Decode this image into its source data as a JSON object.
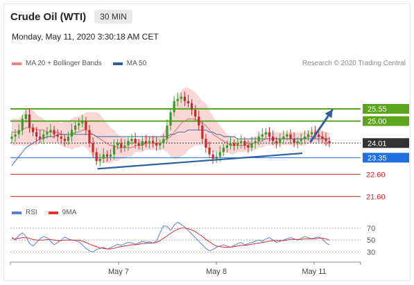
{
  "header": {
    "instrument": "Crude Oil (WTI)",
    "timeframe": "30 MIN",
    "datetime": "Monday, May 11, 2020 3:30:18 AM CET",
    "credit": "Research © 2020 Trading Central"
  },
  "legend_main": [
    {
      "label": "MA 20 + Bollinger Bands",
      "color": "#ef8080"
    },
    {
      "label": "MA 50",
      "color": "#2f5f9e"
    }
  ],
  "legend_rsi": [
    {
      "label": "RSI",
      "color": "#5b7fd6"
    },
    {
      "label": "9MA",
      "color": "#e03030"
    }
  ],
  "chart_data": [
    {
      "type": "candlestick",
      "x_tick_labels": [
        "May 7",
        "May 8",
        "May 11"
      ],
      "ylim": [
        21.3,
        26.3
      ],
      "levels": [
        {
          "value": 25.55,
          "label": "25.55",
          "color": "#5aa51a",
          "kind": "resistance"
        },
        {
          "value": 25.0,
          "label": "25.00",
          "color": "#5aa51a",
          "kind": "resistance"
        },
        {
          "value": 24.01,
          "label": "24.01",
          "color": "#333333",
          "kind": "last-price"
        },
        {
          "value": 23.35,
          "label": "23.35",
          "color": "#1f6fe0",
          "kind": "pivot"
        },
        {
          "value": 22.6,
          "label": "22.60",
          "color": "#d22020",
          "kind": "support"
        },
        {
          "value": 21.6,
          "label": "21.60",
          "color": "#d22020",
          "kind": "support"
        }
      ],
      "trendline": {
        "from": [
          0.27,
          22.85
        ],
        "to": [
          0.915,
          23.55
        ]
      },
      "forecast_arrow": {
        "from": [
          0.94,
          24.05
        ],
        "to": [
          1.01,
          25.52
        ]
      },
      "close": [
        24.3,
        24.4,
        24.6,
        25.1,
        25.3,
        24.7,
        24.5,
        24.3,
        24.2,
        24.4,
        24.5,
        24.6,
        24.4,
        24.3,
        24.2,
        24.1,
        24.3,
        24.6,
        24.8,
        24.9,
        25.0,
        24.6,
        24.0,
        23.6,
        23.2,
        23.3,
        23.5,
        23.4,
        23.5,
        23.9,
        24.0,
        23.8,
        23.9,
        24.1,
        24.2,
        24.0,
        23.9,
        24.1,
        24.0,
        24.1,
        24.0,
        23.9,
        24.0,
        24.2,
        24.8,
        25.4,
        25.9,
        26.0,
        26.1,
        25.9,
        25.8,
        25.5,
        25.2,
        24.8,
        24.2,
        23.8,
        23.5,
        23.3,
        23.4,
        23.6,
        23.8,
        23.9,
        24.0,
        23.9,
        24.0,
        24.1,
        23.9,
        23.8,
        24.0,
        24.1,
        24.3,
        24.4,
        24.5,
        24.3,
        24.1,
        24.0,
        24.2,
        24.3,
        24.4,
        24.2,
        24.0,
        24.1,
        24.2,
        24.3,
        24.4,
        24.5,
        24.4,
        24.3,
        24.2,
        24.1,
        24.0
      ],
      "ma20": [
        24.5,
        24.5,
        24.5,
        24.6,
        24.7,
        24.7,
        24.7,
        24.6,
        24.6,
        24.6,
        24.5,
        24.5,
        24.5,
        24.5,
        24.4,
        24.4,
        24.4,
        24.4,
        24.5,
        24.5,
        24.6,
        24.6,
        24.5,
        24.4,
        24.3,
        24.2,
        24.1,
        24.0,
        23.9,
        23.9,
        23.8,
        23.8,
        23.8,
        23.8,
        23.8,
        23.9,
        23.9,
        23.9,
        24.0,
        24.0,
        24.0,
        24.0,
        24.0,
        24.1,
        24.2,
        24.3,
        24.5,
        24.7,
        24.9,
        25.0,
        25.1,
        25.1,
        25.1,
        25.0,
        24.9,
        24.8,
        24.6,
        24.4,
        24.3,
        24.2,
        24.1,
        24.0,
        23.9,
        23.9,
        23.9,
        23.9,
        23.9,
        23.9,
        24.0,
        24.0,
        24.1,
        24.1,
        24.2,
        24.2,
        24.2,
        24.2,
        24.2,
        24.2,
        24.2,
        24.2,
        24.2,
        24.2,
        24.2,
        24.2,
        24.3,
        24.3,
        24.3,
        24.3,
        24.3,
        24.2,
        24.2
      ],
      "ma50": [
        23.0,
        23.2,
        23.4,
        23.6,
        23.8,
        23.9,
        24.0,
        24.1,
        24.2,
        24.2,
        24.3,
        24.3,
        24.3,
        24.4,
        24.4,
        24.4,
        24.4,
        24.4,
        24.4,
        24.4,
        24.4,
        24.4,
        24.4,
        24.4,
        24.3,
        24.3,
        24.3,
        24.3,
        24.3,
        24.3,
        24.3,
        24.3,
        24.3,
        24.3,
        24.3,
        24.3,
        24.3,
        24.3,
        24.3,
        24.3,
        24.3,
        24.3,
        24.3,
        24.3,
        24.3,
        24.4,
        24.4,
        24.5,
        24.5,
        24.5,
        24.6,
        24.6,
        24.6,
        24.6,
        24.6,
        24.6,
        24.5,
        24.5,
        24.4,
        24.4,
        24.3,
        24.3,
        24.3,
        24.3,
        24.2,
        24.2,
        24.2,
        24.2,
        24.2,
        24.2,
        24.2,
        24.2,
        24.2,
        24.2,
        24.2,
        24.2,
        24.2,
        24.2,
        24.2,
        24.2,
        24.2,
        24.2,
        24.2,
        24.2,
        24.2,
        24.2,
        24.2,
        24.2,
        24.2,
        24.2,
        24.2
      ],
      "bb_width": [
        0.6,
        0.6,
        0.6,
        0.7,
        0.8,
        0.8,
        0.8,
        0.7,
        0.6,
        0.5,
        0.5,
        0.5,
        0.5,
        0.5,
        0.5,
        0.6,
        0.6,
        0.7,
        0.7,
        0.7,
        0.7,
        0.8,
        0.9,
        1.0,
        1.1,
        1.1,
        1.0,
        0.9,
        0.8,
        0.7,
        0.6,
        0.5,
        0.5,
        0.4,
        0.4,
        0.3,
        0.3,
        0.3,
        0.3,
        0.3,
        0.3,
        0.3,
        0.3,
        0.4,
        0.6,
        0.9,
        1.2,
        1.4,
        1.5,
        1.5,
        1.4,
        1.3,
        1.2,
        1.1,
        1.0,
        1.0,
        0.9,
        0.8,
        0.7,
        0.6,
        0.5,
        0.4,
        0.4,
        0.4,
        0.3,
        0.3,
        0.3,
        0.3,
        0.3,
        0.3,
        0.3,
        0.3,
        0.3,
        0.3,
        0.3,
        0.3,
        0.3,
        0.3,
        0.3,
        0.3,
        0.3,
        0.3,
        0.3,
        0.3,
        0.3,
        0.3,
        0.3,
        0.3,
        0.3,
        0.3,
        0.3
      ]
    },
    {
      "type": "line",
      "name": "RSI",
      "ylim": [
        20,
        85
      ],
      "y_tick_labels": [
        70,
        50,
        30
      ],
      "rsi": [
        55,
        50,
        58,
        62,
        56,
        45,
        40,
        46,
        52,
        56,
        54,
        48,
        42,
        46,
        50,
        55,
        52,
        50,
        49,
        47,
        42,
        36,
        32,
        30,
        34,
        36,
        38,
        35,
        37,
        40,
        43,
        41,
        44,
        46,
        45,
        43,
        45,
        48,
        46,
        47,
        45,
        48,
        62,
        74,
        73,
        66,
        75,
        80,
        76,
        72,
        66,
        60,
        54,
        48,
        42,
        36,
        32,
        34,
        38,
        40,
        42,
        40,
        38,
        41,
        44,
        46,
        42,
        44,
        46,
        48,
        50,
        48,
        52,
        54,
        50,
        46,
        48,
        50,
        52,
        54,
        52,
        50,
        53,
        56,
        54,
        52,
        54,
        55,
        52,
        45,
        42
      ],
      "ma9": [
        52,
        52,
        53,
        54,
        54,
        53,
        51,
        50,
        50,
        50,
        51,
        51,
        50,
        49,
        49,
        50,
        50,
        50,
        50,
        50,
        48,
        46,
        43,
        41,
        39,
        37,
        36,
        35,
        35,
        36,
        38,
        39,
        40,
        41,
        42,
        42,
        43,
        44,
        44,
        45,
        45,
        46,
        49,
        53,
        57,
        61,
        65,
        68,
        70,
        70,
        69,
        67,
        64,
        60,
        56,
        51,
        47,
        43,
        40,
        39,
        38,
        38,
        38,
        39,
        40,
        41,
        41,
        42,
        43,
        44,
        45,
        46,
        47,
        48,
        49,
        49,
        49,
        49,
        50,
        51,
        51,
        51,
        51,
        52,
        52,
        52,
        52,
        53,
        53,
        52,
        50
      ]
    }
  ]
}
